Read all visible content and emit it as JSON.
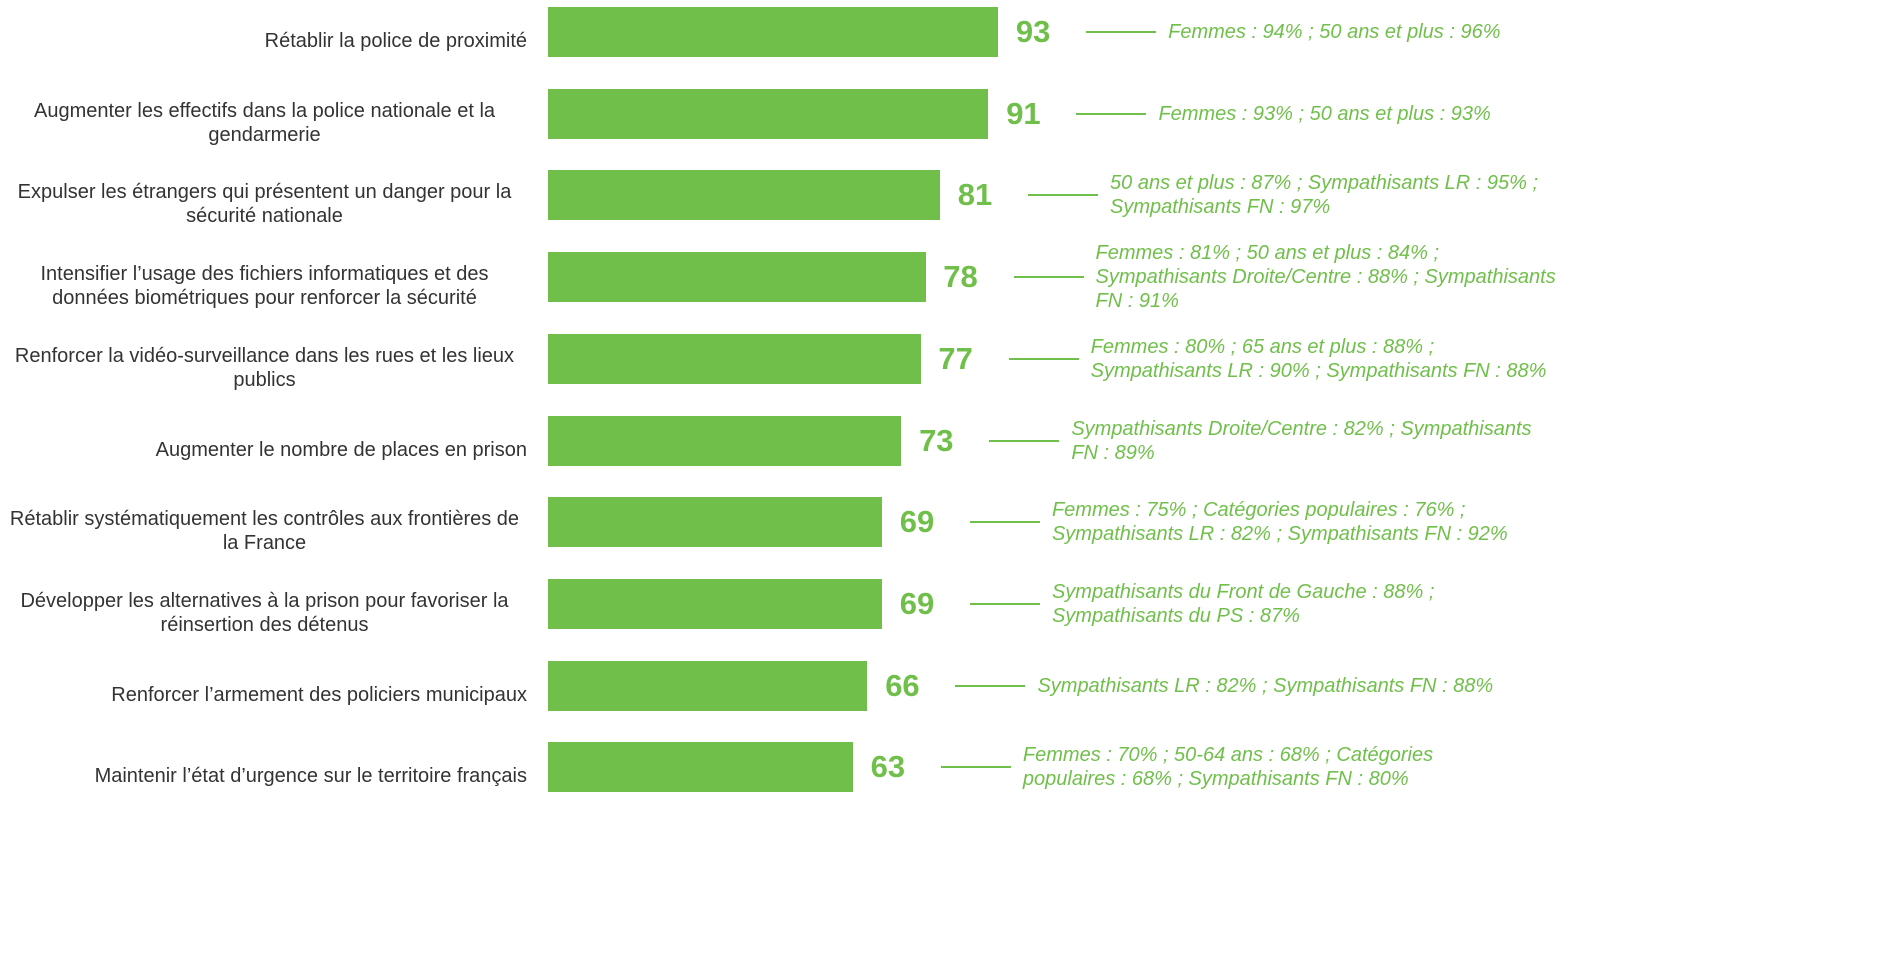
{
  "chart_data": {
    "type": "bar",
    "orientation": "horizontal",
    "color": "#70bf4b",
    "categories": [
      "Rétablir la police de proximité",
      "Augmenter les effectifs dans la police nationale et la gendarmerie",
      "Expulser les étrangers qui présentent un danger pour la sécurité nationale",
      "Intensifier l’usage des fichiers informatiques et des données biométriques pour renforcer la sécurité",
      "Renforcer la vidéo-surveillance dans les rues et les lieux publics",
      "Augmenter le nombre de places en prison",
      "Rétablir systématiquement les contrôles aux frontières de la France",
      "Développer les alternatives à la prison pour favoriser la réinsertion des détenus",
      "Renforcer l’armement des policiers municipaux",
      "Maintenir l’état d’urgence sur le territoire français"
    ],
    "values": [
      93,
      91,
      81,
      78,
      77,
      73,
      69,
      69,
      66,
      63
    ],
    "annotations": [
      "Femmes : 94% ; 50 ans et plus : 96%",
      "Femmes : 93% ; 50 ans et plus : 93%",
      "50 ans et plus : 87% ; Sympathisants LR : 95% ; Sympathisants FN : 97%",
      "Femmes : 81% ; 50 ans et plus : 84% ; Sympathisants Droite/Centre : 88% ; Sympathisants FN : 91%",
      "Femmes : 80% ; 65 ans et plus : 88% ; Sympathisants LR : 90% ; Sympathisants FN : 88%",
      "Sympathisants Droite/Centre : 82% ; Sympathisants FN : 89%",
      "Femmes : 75% ; Catégories populaires : 76% ; Sympathisants LR : 82% ; Sympathisants FN : 92%",
      "Sympathisants du Front de Gauche : 88% ; Sympathisants du PS : 87%",
      "Sympathisants LR : 82% ; Sympathisants FN : 88%",
      "Femmes : 70% ; 50-64 ans : 68% ; Catégories populaires : 68% ; Sympathisants FN : 80%"
    ]
  }
}
